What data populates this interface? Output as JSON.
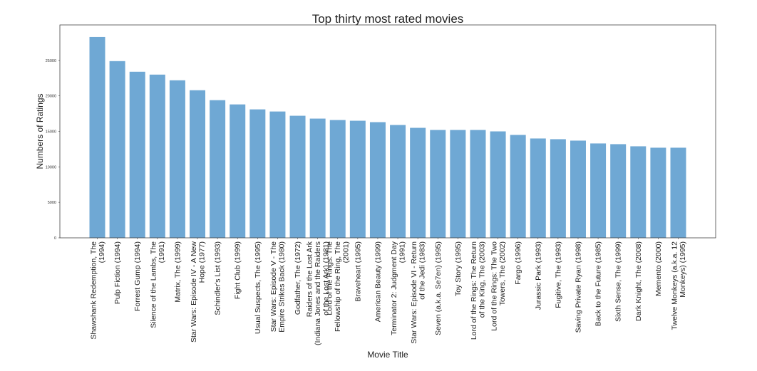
{
  "chart_data": {
    "type": "bar",
    "title": "Top thirty most rated movies",
    "xlabel": "Movie Title",
    "ylabel": "Numbers of Ratings",
    "ylim": [
      0,
      30000
    ],
    "yticks": [
      0,
      5000,
      10000,
      15000,
      20000,
      25000
    ],
    "grid": false,
    "bar_color": "#6fa8d4",
    "categories": [
      [
        "Shawshank Redemption, The",
        "(1994)"
      ],
      [
        "Pulp Fiction (1994)"
      ],
      [
        "Forrest Gump (1994)"
      ],
      [
        "Silence of the Lambs, The",
        "(1991)"
      ],
      [
        "Matrix, The (1999)"
      ],
      [
        "Star Wars: Episode IV - A New",
        "Hope (1977)"
      ],
      [
        "Schindler's List (1993)"
      ],
      [
        "Fight Club (1999)"
      ],
      [
        "Usual Suspects, The (1995)"
      ],
      [
        "Star Wars: Episode V - The",
        "Empire Strikes Back (1980)"
      ],
      [
        "Godfather, The (1972)"
      ],
      [
        "Raiders of the Lost Ark",
        "(Indiana Jones and the Raiders",
        "of the Lost Ark) (1981)"
      ],
      [
        "Lord of the Rings: The",
        "Fellowship of the Ring, The",
        "(2001)"
      ],
      [
        "Braveheart (1995)"
      ],
      [
        "American Beauty (1999)"
      ],
      [
        "Terminator 2: Judgment Day",
        "(1991)"
      ],
      [
        "Star Wars: Episode VI - Return",
        "of the Jedi (1983)"
      ],
      [
        "Seven (a.k.a. Se7en) (1995)"
      ],
      [
        "Toy Story (1995)"
      ],
      [
        "Lord of the Rings: The Return",
        "of the King, The (2003)"
      ],
      [
        "Lord of the Rings: The Two",
        "Towers, The (2002)"
      ],
      [
        "Fargo (1996)"
      ],
      [
        "Jurassic Park (1993)"
      ],
      [
        "Fugitive, The (1993)"
      ],
      [
        "Saving Private Ryan (1998)"
      ],
      [
        "Back to the Future (1985)"
      ],
      [
        "Sixth Sense, The (1999)"
      ],
      [
        "Dark Knight, The (2008)"
      ],
      [
        "Memento (2000)"
      ],
      [
        "Twelve Monkeys (a.k.a. 12",
        "Monkeys) (1995)"
      ]
    ],
    "values": [
      28300,
      24900,
      23400,
      23000,
      22200,
      20800,
      19400,
      18800,
      18100,
      17800,
      17200,
      16800,
      16600,
      16500,
      16300,
      15900,
      15500,
      15200,
      15200,
      15200,
      15000,
      14500,
      14000,
      13900,
      13700,
      13300,
      13200,
      12900,
      12700,
      12700
    ]
  }
}
